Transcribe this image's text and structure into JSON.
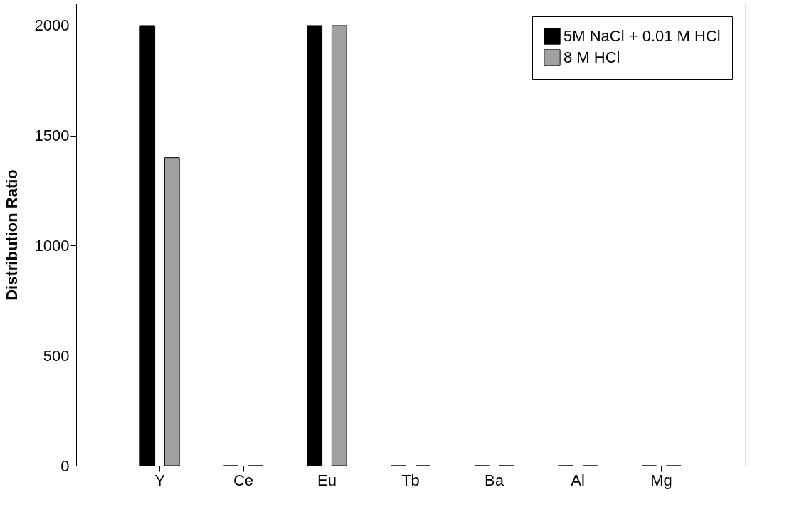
{
  "chart_data": {
    "type": "bar",
    "ylabel": "Distribution Ratio",
    "categories": [
      "Y",
      "Ce",
      "Eu",
      "Tb",
      "Ba",
      "Al",
      "Mg"
    ],
    "series": [
      {
        "name": "5M NaCl + 0.01 M HCl",
        "color": "#000000",
        "values": [
          2000,
          0,
          2000,
          0,
          0,
          0,
          0
        ]
      },
      {
        "name": "8 M HCl",
        "color": "#a0a0a0",
        "values": [
          1400,
          0,
          2000,
          0,
          0,
          0,
          0
        ]
      }
    ],
    "ylim": [
      0,
      2100
    ],
    "yticks": [
      0,
      500,
      1000,
      1500,
      2000
    ],
    "grid": false,
    "legend": "top right"
  }
}
